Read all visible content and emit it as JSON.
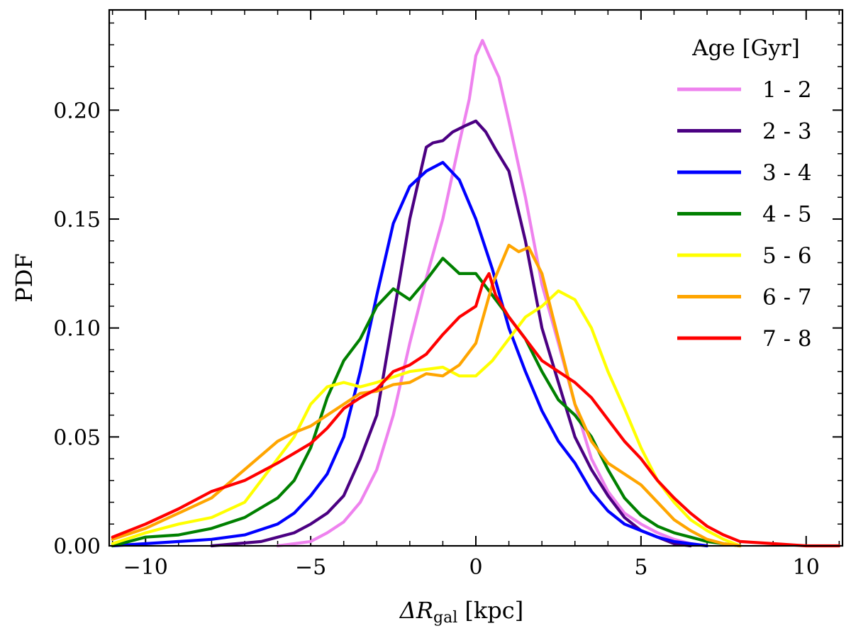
{
  "chart_data": {
    "type": "line",
    "xlabel": "ΔR",
    "xlabel_sub": "gal",
    "xlabel_unit": " [kpc]",
    "ylabel": "PDF",
    "xlim": [
      -11.1,
      11.1
    ],
    "ylim": [
      0,
      0.246
    ],
    "xticks": [
      -10,
      -5,
      0,
      5,
      10
    ],
    "xtick_labels": [
      "−10",
      "−5",
      "0",
      "5",
      "10"
    ],
    "yticks": [
      0,
      0.05,
      0.1,
      0.15,
      0.2
    ],
    "ytick_labels": [
      "0.00",
      "0.05",
      "0.10",
      "0.15",
      "0.20"
    ],
    "grid": false,
    "legend": {
      "title": "Age [Gyr]",
      "placement": "top-right"
    },
    "series": [
      {
        "name": "1 - 2",
        "color": "#ee82ee",
        "x": [
          -6.0,
          -5.0,
          -4.5,
          -4.0,
          -3.5,
          -3.0,
          -2.5,
          -2.0,
          -1.5,
          -1.0,
          -0.5,
          -0.2,
          0.0,
          0.2,
          0.4,
          0.7,
          1.0,
          1.5,
          2.0,
          2.5,
          3.0,
          3.5,
          4.0,
          4.5,
          5.0,
          5.5,
          6.0,
          6.5,
          7.0
        ],
        "y": [
          0.0,
          0.002,
          0.006,
          0.011,
          0.02,
          0.035,
          0.06,
          0.093,
          0.123,
          0.15,
          0.185,
          0.205,
          0.225,
          0.232,
          0.225,
          0.215,
          0.195,
          0.16,
          0.12,
          0.093,
          0.065,
          0.04,
          0.025,
          0.015,
          0.01,
          0.006,
          0.003,
          0.001,
          0.0
        ]
      },
      {
        "name": "2 - 3",
        "color": "#4b0082",
        "x": [
          -8.0,
          -6.5,
          -5.5,
          -5.0,
          -4.5,
          -4.0,
          -3.5,
          -3.0,
          -2.5,
          -2.0,
          -1.5,
          -1.3,
          -1.0,
          -0.7,
          -0.3,
          0.0,
          0.3,
          0.6,
          1.0,
          1.5,
          2.0,
          2.5,
          3.0,
          3.5,
          4.0,
          4.5,
          5.0,
          5.5,
          6.0,
          6.5
        ],
        "y": [
          0.0,
          0.002,
          0.006,
          0.01,
          0.015,
          0.023,
          0.04,
          0.06,
          0.105,
          0.15,
          0.183,
          0.185,
          0.186,
          0.19,
          0.193,
          0.195,
          0.19,
          0.182,
          0.172,
          0.14,
          0.1,
          0.075,
          0.05,
          0.035,
          0.023,
          0.013,
          0.007,
          0.004,
          0.001,
          0.0
        ]
      },
      {
        "name": "3 - 4",
        "color": "#0000ff",
        "x": [
          -11.0,
          -10.0,
          -9.0,
          -8.0,
          -7.0,
          -6.0,
          -5.5,
          -5.0,
          -4.5,
          -4.0,
          -3.5,
          -3.0,
          -2.5,
          -2.0,
          -1.5,
          -1.0,
          -0.5,
          0.0,
          0.5,
          1.0,
          1.5,
          2.0,
          2.5,
          3.0,
          3.5,
          4.0,
          4.5,
          5.0,
          5.5,
          6.0,
          6.5,
          7.0
        ],
        "y": [
          0.0,
          0.001,
          0.002,
          0.003,
          0.005,
          0.01,
          0.015,
          0.023,
          0.033,
          0.05,
          0.08,
          0.115,
          0.148,
          0.165,
          0.172,
          0.176,
          0.168,
          0.15,
          0.127,
          0.1,
          0.08,
          0.062,
          0.048,
          0.038,
          0.025,
          0.016,
          0.01,
          0.007,
          0.004,
          0.002,
          0.001,
          0.0
        ]
      },
      {
        "name": "4 - 5",
        "color": "#008000",
        "x": [
          -11.0,
          -10.0,
          -9.0,
          -8.0,
          -7.0,
          -6.0,
          -5.5,
          -5.0,
          -4.5,
          -4.0,
          -3.5,
          -3.0,
          -2.5,
          -2.0,
          -1.5,
          -1.0,
          -0.5,
          0.0,
          0.5,
          1.0,
          1.5,
          2.0,
          2.5,
          3.0,
          3.5,
          4.0,
          4.5,
          5.0,
          5.5,
          6.0,
          6.5,
          7.0,
          7.5,
          8.0
        ],
        "y": [
          0.0,
          0.004,
          0.005,
          0.008,
          0.013,
          0.022,
          0.03,
          0.045,
          0.068,
          0.085,
          0.095,
          0.11,
          0.118,
          0.113,
          0.122,
          0.132,
          0.125,
          0.125,
          0.115,
          0.105,
          0.095,
          0.08,
          0.067,
          0.06,
          0.05,
          0.035,
          0.022,
          0.014,
          0.009,
          0.006,
          0.004,
          0.002,
          0.001,
          0.0
        ]
      },
      {
        "name": "5 - 6",
        "color": "#ffff00",
        "x": [
          -11.0,
          -10.0,
          -9.0,
          -8.0,
          -7.0,
          -6.5,
          -6.0,
          -5.5,
          -5.0,
          -4.5,
          -4.0,
          -3.5,
          -3.0,
          -2.0,
          -1.0,
          -0.5,
          0.0,
          0.5,
          1.0,
          1.5,
          2.0,
          2.5,
          3.0,
          3.5,
          4.0,
          4.5,
          5.0,
          5.5,
          6.0,
          6.5,
          7.0,
          7.5,
          8.0
        ],
        "y": [
          0.001,
          0.006,
          0.01,
          0.013,
          0.02,
          0.03,
          0.04,
          0.05,
          0.065,
          0.073,
          0.075,
          0.073,
          0.075,
          0.08,
          0.082,
          0.078,
          0.078,
          0.085,
          0.095,
          0.105,
          0.11,
          0.117,
          0.113,
          0.1,
          0.08,
          0.063,
          0.045,
          0.03,
          0.02,
          0.012,
          0.007,
          0.003,
          0.0
        ]
      },
      {
        "name": "6 - 7",
        "color": "#ffa500",
        "x": [
          -11.0,
          -10.0,
          -9.0,
          -8.0,
          -7.0,
          -6.0,
          -5.5,
          -5.0,
          -4.5,
          -4.0,
          -3.5,
          -3.0,
          -2.5,
          -2.0,
          -1.5,
          -1.0,
          -0.5,
          0.0,
          0.5,
          1.0,
          1.3,
          1.6,
          2.0,
          2.5,
          3.0,
          3.5,
          4.0,
          4.5,
          5.0,
          5.5,
          6.0,
          6.5,
          7.0,
          7.5,
          8.0
        ],
        "y": [
          0.003,
          0.008,
          0.015,
          0.022,
          0.035,
          0.048,
          0.052,
          0.055,
          0.06,
          0.065,
          0.07,
          0.071,
          0.074,
          0.075,
          0.079,
          0.078,
          0.083,
          0.093,
          0.12,
          0.138,
          0.135,
          0.137,
          0.125,
          0.095,
          0.065,
          0.048,
          0.038,
          0.033,
          0.028,
          0.02,
          0.012,
          0.007,
          0.003,
          0.001,
          0.0
        ]
      },
      {
        "name": "7 - 8",
        "color": "#ff0000",
        "x": [
          -11.0,
          -10.0,
          -9.0,
          -8.0,
          -7.0,
          -6.0,
          -5.0,
          -4.5,
          -4.0,
          -3.5,
          -3.0,
          -2.5,
          -2.0,
          -1.5,
          -1.0,
          -0.5,
          0.0,
          0.2,
          0.4,
          0.6,
          1.0,
          1.5,
          2.0,
          2.5,
          3.0,
          3.5,
          4.0,
          4.5,
          5.0,
          5.5,
          6.0,
          6.5,
          7.0,
          7.5,
          8.0,
          9.0,
          10.0,
          11.0
        ],
        "y": [
          0.004,
          0.01,
          0.017,
          0.025,
          0.03,
          0.038,
          0.047,
          0.054,
          0.063,
          0.068,
          0.072,
          0.08,
          0.083,
          0.088,
          0.097,
          0.105,
          0.11,
          0.12,
          0.125,
          0.115,
          0.105,
          0.095,
          0.085,
          0.08,
          0.075,
          0.068,
          0.058,
          0.048,
          0.04,
          0.03,
          0.022,
          0.015,
          0.009,
          0.005,
          0.002,
          0.001,
          0.0,
          0.0
        ]
      }
    ]
  }
}
